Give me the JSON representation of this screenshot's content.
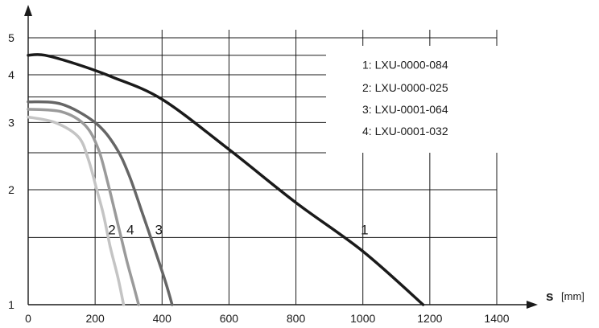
{
  "chart_data": {
    "type": "line",
    "title": "",
    "xlabel": "s",
    "xunit": "[mm]",
    "ylabel": "",
    "xlim": [
      0,
      1400
    ],
    "ylim": [
      1,
      5
    ],
    "y_scale": "log",
    "grid": true,
    "legend_position": "top-right",
    "x_ticks": [
      "0",
      "200",
      "400",
      "600",
      "800",
      "1000",
      "1200",
      "1400"
    ],
    "y_ticks": [
      "1",
      "2",
      "3",
      "4",
      "5"
    ],
    "legend": [
      "1: LXU-0000-084",
      "2: LXU-0000-025",
      "3: LXU-0001-064",
      "4: LXU-0001-032"
    ],
    "series": [
      {
        "name": "1",
        "color": "#1a1a1a",
        "x": [
          0,
          50,
          150,
          250,
          400,
          600,
          800,
          1000,
          1180
        ],
        "y": [
          4.5,
          4.5,
          4.25,
          3.95,
          3.45,
          2.55,
          1.85,
          1.38,
          1.0
        ]
      },
      {
        "name": "3",
        "color": "#666666",
        "x": [
          0,
          100,
          200,
          260,
          300,
          340,
          380,
          410,
          430
        ],
        "y": [
          3.4,
          3.35,
          3.0,
          2.6,
          2.2,
          1.75,
          1.38,
          1.15,
          1.0
        ]
      },
      {
        "name": "4",
        "color": "#9a9a9a",
        "x": [
          0,
          100,
          170,
          210,
          240,
          270,
          295,
          315,
          330
        ],
        "y": [
          3.25,
          3.2,
          2.95,
          2.55,
          2.05,
          1.6,
          1.3,
          1.12,
          1.0
        ]
      },
      {
        "name": "2",
        "color": "#c4c4c4",
        "x": [
          0,
          80,
          150,
          180,
          205,
          225,
          245,
          268,
          285
        ],
        "y": [
          3.1,
          3.0,
          2.75,
          2.4,
          2.0,
          1.72,
          1.42,
          1.18,
          1.0
        ]
      }
    ],
    "curve_labels": [
      {
        "text": "1",
        "x": 1010,
        "y": 1.5
      },
      {
        "text": "2",
        "x": 255,
        "y": 1.5
      },
      {
        "text": "4",
        "x": 310,
        "y": 1.5
      },
      {
        "text": "3",
        "x": 395,
        "y": 1.5
      }
    ]
  }
}
